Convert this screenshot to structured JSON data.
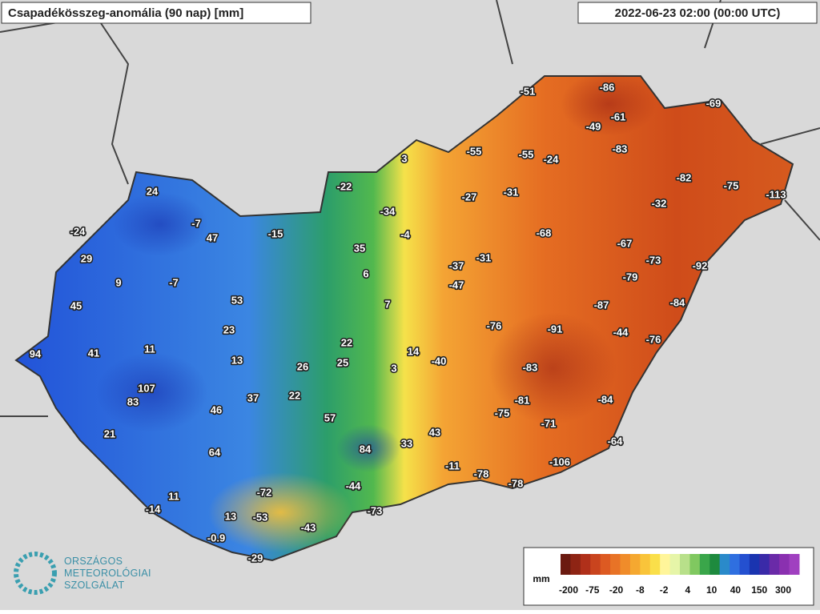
{
  "title": "Csapadékösszeg-anomália (90 nap) [mm]",
  "timestamp": "2022-06-23 02:00 (00:00 UTC)",
  "stations": [
    24,
    -7,
    47,
    -24,
    29,
    9,
    -7,
    45,
    53,
    23,
    94,
    41,
    11,
    13,
    26,
    25,
    22,
    107,
    83,
    37,
    22,
    46,
    21,
    57,
    64,
    84,
    33,
    43,
    11,
    -14,
    13,
    -53,
    -72,
    -0.9,
    -29,
    -43,
    -73,
    -44,
    -11,
    -78,
    -78,
    -15,
    35,
    6,
    7,
    14,
    3,
    -40,
    -22,
    3,
    -34,
    -4,
    -37,
    -31,
    -47,
    -51,
    -86,
    -61,
    -49,
    -55,
    -55,
    -24,
    -27,
    -31,
    -83,
    -69,
    -82,
    -75,
    -113,
    -32,
    -68,
    -67,
    -73,
    -79,
    -92,
    -84,
    -87,
    -91,
    -76,
    -44,
    -76,
    -83,
    -81,
    -75,
    -84,
    -71,
    -64,
    -106
  ],
  "legend": {
    "unit": "mm",
    "ticks": [
      -200,
      -75,
      -20,
      -8,
      -2,
      4,
      10,
      40,
      150,
      300
    ],
    "colors": [
      "#6b1a10",
      "#8e2414",
      "#b0301a",
      "#c9441e",
      "#dd5a22",
      "#e87326",
      "#f08c2a",
      "#f5a830",
      "#f9c43a",
      "#fadf4a",
      "#fff59a",
      "#e6f5a8",
      "#b8e08a",
      "#80c860",
      "#3aa64a",
      "#1e8a3e",
      "#2a8aca",
      "#2f6fe0",
      "#2450d0",
      "#1a34b0",
      "#3a2aa8",
      "#6a2aa8",
      "#8a30b0",
      "#a040c0"
    ]
  },
  "logo": [
    "ORSZÁGOS",
    "METEOROLÓGIAI",
    "SZOLGÁLAT"
  ]
}
